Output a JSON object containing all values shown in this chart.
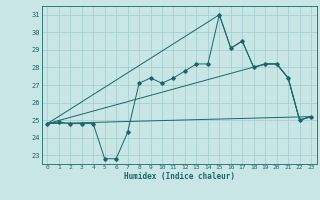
{
  "xlabel": "Humidex (Indice chaleur)",
  "xlim": [
    -0.5,
    23.5
  ],
  "ylim": [
    22.5,
    31.5
  ],
  "yticks": [
    23,
    24,
    25,
    26,
    27,
    28,
    29,
    30,
    31
  ],
  "xticks": [
    0,
    1,
    2,
    3,
    4,
    5,
    6,
    7,
    8,
    9,
    10,
    11,
    12,
    13,
    14,
    15,
    16,
    17,
    18,
    19,
    20,
    21,
    22,
    23
  ],
  "bg_color": "#c8e6e6",
  "grid_color": "#a0cccc",
  "line_color": "#1a6666",
  "main_line": {
    "x": [
      0,
      1,
      2,
      3,
      4,
      5,
      6,
      7,
      8,
      9,
      10,
      11,
      12,
      13,
      14,
      15,
      16,
      17,
      18,
      19,
      20,
      21,
      22,
      23
    ],
    "y": [
      24.8,
      24.9,
      24.8,
      24.8,
      24.8,
      22.8,
      22.8,
      24.3,
      27.1,
      27.4,
      27.1,
      27.4,
      27.8,
      28.2,
      28.2,
      31.0,
      29.1,
      29.5,
      28.0,
      28.2,
      28.2,
      27.4,
      25.0,
      25.2
    ]
  },
  "envelope_lines": [
    {
      "x": [
        0,
        23
      ],
      "y": [
        24.8,
        25.2
      ]
    },
    {
      "x": [
        0,
        19,
        20,
        21,
        22,
        23
      ],
      "y": [
        24.8,
        28.2,
        28.2,
        27.4,
        25.0,
        25.2
      ]
    },
    {
      "x": [
        0,
        15,
        16,
        17,
        18,
        19,
        20,
        21,
        22,
        23
      ],
      "y": [
        24.8,
        31.0,
        29.1,
        29.5,
        28.0,
        28.2,
        28.2,
        27.4,
        25.0,
        25.2
      ]
    }
  ]
}
